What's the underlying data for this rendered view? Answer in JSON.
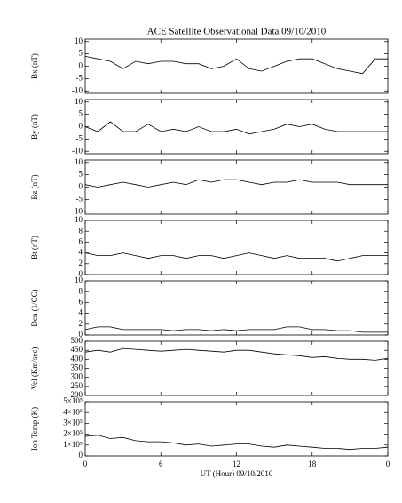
{
  "chart_data": [
    {
      "type": "line",
      "title": "ACE Satellite Observational Data   09/10/2010",
      "ylabel": "Bx (nT)",
      "color": "#000000",
      "xlim": [
        0,
        24
      ],
      "xticks": [
        0,
        6,
        12,
        18,
        {
          "value": 24,
          "label": "0"
        }
      ],
      "ylim": [
        -11,
        11
      ],
      "yticks": [
        -10,
        -5,
        0,
        5,
        10
      ],
      "x": [
        0,
        1,
        2,
        3,
        4,
        5,
        6,
        7,
        8,
        9,
        10,
        11,
        12,
        13,
        14,
        15,
        16,
        17,
        18,
        19,
        20,
        21,
        22,
        23,
        24
      ],
      "values": [
        4,
        3,
        2,
        -1,
        2,
        1,
        2,
        2,
        1,
        1,
        -1,
        0,
        3,
        -1,
        -2,
        0,
        2,
        3,
        3,
        1,
        -1,
        -2,
        -3,
        3,
        3
      ]
    },
    {
      "type": "line",
      "ylabel": "By (nT)",
      "color": "#000000",
      "xlim": [
        0,
        24
      ],
      "xticks": [
        0,
        6,
        12,
        18,
        {
          "value": 24,
          "label": "0"
        }
      ],
      "ylim": [
        -11,
        11
      ],
      "yticks": [
        -10,
        -5,
        0,
        5,
        10
      ],
      "x": [
        0,
        1,
        2,
        3,
        4,
        5,
        6,
        7,
        8,
        9,
        10,
        11,
        12,
        13,
        14,
        15,
        16,
        17,
        18,
        19,
        20,
        21,
        22,
        23,
        24
      ],
      "values": [
        0,
        -2,
        2,
        -2,
        -2,
        1,
        -2,
        -1,
        -2,
        0,
        -2,
        -2,
        -1,
        -3,
        -2,
        -1,
        1,
        0,
        1,
        -1,
        -2,
        -2,
        -2,
        -2,
        -2
      ]
    },
    {
      "type": "line",
      "ylabel": "Bz (nT)",
      "color": "#000000",
      "xlim": [
        0,
        24
      ],
      "xticks": [
        0,
        6,
        12,
        18,
        {
          "value": 24,
          "label": "0"
        }
      ],
      "ylim": [
        -11,
        11
      ],
      "yticks": [
        -10,
        -5,
        0,
        5,
        10
      ],
      "x": [
        0,
        1,
        2,
        3,
        4,
        5,
        6,
        7,
        8,
        9,
        10,
        11,
        12,
        13,
        14,
        15,
        16,
        17,
        18,
        19,
        20,
        21,
        22,
        23,
        24
      ],
      "values": [
        1,
        0,
        1,
        2,
        1,
        0,
        1,
        2,
        1,
        3,
        2,
        3,
        3,
        2,
        1,
        2,
        2,
        3,
        2,
        2,
        2,
        1,
        1,
        1,
        1
      ]
    },
    {
      "type": "line",
      "ylabel": "Bt (nT)",
      "color": "#000000",
      "xlim": [
        0,
        24
      ],
      "xticks": [
        0,
        6,
        12,
        18,
        {
          "value": 24,
          "label": "0"
        }
      ],
      "ylim": [
        0,
        10
      ],
      "yticks": [
        0,
        2,
        4,
        6,
        8,
        10
      ],
      "x": [
        0,
        1,
        2,
        3,
        4,
        5,
        6,
        7,
        8,
        9,
        10,
        11,
        12,
        13,
        14,
        15,
        16,
        17,
        18,
        19,
        20,
        21,
        22,
        23,
        24
      ],
      "values": [
        4,
        3.5,
        3.5,
        4,
        3.5,
        3,
        3.5,
        3.5,
        3,
        3.5,
        3.5,
        3,
        3.5,
        4,
        3.5,
        3,
        3.5,
        3,
        3,
        3,
        2.5,
        3,
        3.5,
        3.5,
        3.5
      ]
    },
    {
      "type": "line",
      "ylabel": "Den (1/CC)",
      "color": "#000000",
      "xlim": [
        0,
        24
      ],
      "xticks": [
        0,
        6,
        12,
        18,
        {
          "value": 24,
          "label": "0"
        }
      ],
      "ylim": [
        0,
        10
      ],
      "yticks": [
        0,
        2,
        4,
        6,
        8,
        10
      ],
      "x": [
        0,
        1,
        2,
        3,
        4,
        5,
        6,
        7,
        8,
        9,
        10,
        11,
        12,
        13,
        14,
        15,
        16,
        17,
        18,
        19,
        20,
        21,
        22,
        23,
        24
      ],
      "values": [
        1,
        1.5,
        1.5,
        1,
        1,
        1,
        1,
        0.8,
        1,
        1,
        0.8,
        1,
        0.8,
        1,
        1,
        1,
        1.5,
        1.5,
        1,
        1,
        0.8,
        0.8,
        0.5,
        0.5,
        0.5
      ]
    },
    {
      "type": "line",
      "ylabel": "Vel (Km/sec)",
      "color": "#000000",
      "xlim": [
        0,
        24
      ],
      "xticks": [
        0,
        6,
        12,
        18,
        {
          "value": 24,
          "label": "0"
        }
      ],
      "ylim": [
        200,
        500
      ],
      "yticks": [
        200,
        250,
        300,
        350,
        400,
        450,
        500
      ],
      "x": [
        0,
        1,
        2,
        3,
        4,
        5,
        6,
        7,
        8,
        9,
        10,
        11,
        12,
        13,
        14,
        15,
        16,
        17,
        18,
        19,
        20,
        21,
        22,
        23,
        24
      ],
      "values": [
        440,
        450,
        440,
        460,
        455,
        450,
        445,
        450,
        455,
        450,
        445,
        440,
        450,
        450,
        440,
        430,
        425,
        420,
        410,
        415,
        405,
        400,
        400,
        395,
        405
      ]
    },
    {
      "type": "line",
      "ylabel": "Ion Temp (K)",
      "xlabel": "UT (Hour)   09/10/2010",
      "color": "#000000",
      "xlim": [
        0,
        24
      ],
      "xticks": [
        0,
        6,
        12,
        18,
        {
          "value": 24,
          "label": "0"
        }
      ],
      "ylim": [
        0,
        500000
      ],
      "yticks": [
        0,
        {
          "value": 100000,
          "label": "1×10⁵"
        },
        {
          "value": 200000,
          "label": "2×10⁵"
        },
        {
          "value": 300000,
          "label": "3×10⁵"
        },
        {
          "value": 400000,
          "label": "4×10⁵"
        },
        {
          "value": 500000,
          "label": "5×10⁵"
        }
      ],
      "x": [
        0,
        1,
        2,
        3,
        4,
        5,
        6,
        7,
        8,
        9,
        10,
        11,
        12,
        13,
        14,
        15,
        16,
        17,
        18,
        19,
        20,
        21,
        22,
        23,
        24
      ],
      "values": [
        180000,
        190000,
        160000,
        170000,
        140000,
        130000,
        130000,
        120000,
        100000,
        110000,
        90000,
        100000,
        110000,
        110000,
        90000,
        80000,
        100000,
        90000,
        80000,
        70000,
        70000,
        60000,
        70000,
        70000,
        80000
      ]
    }
  ]
}
